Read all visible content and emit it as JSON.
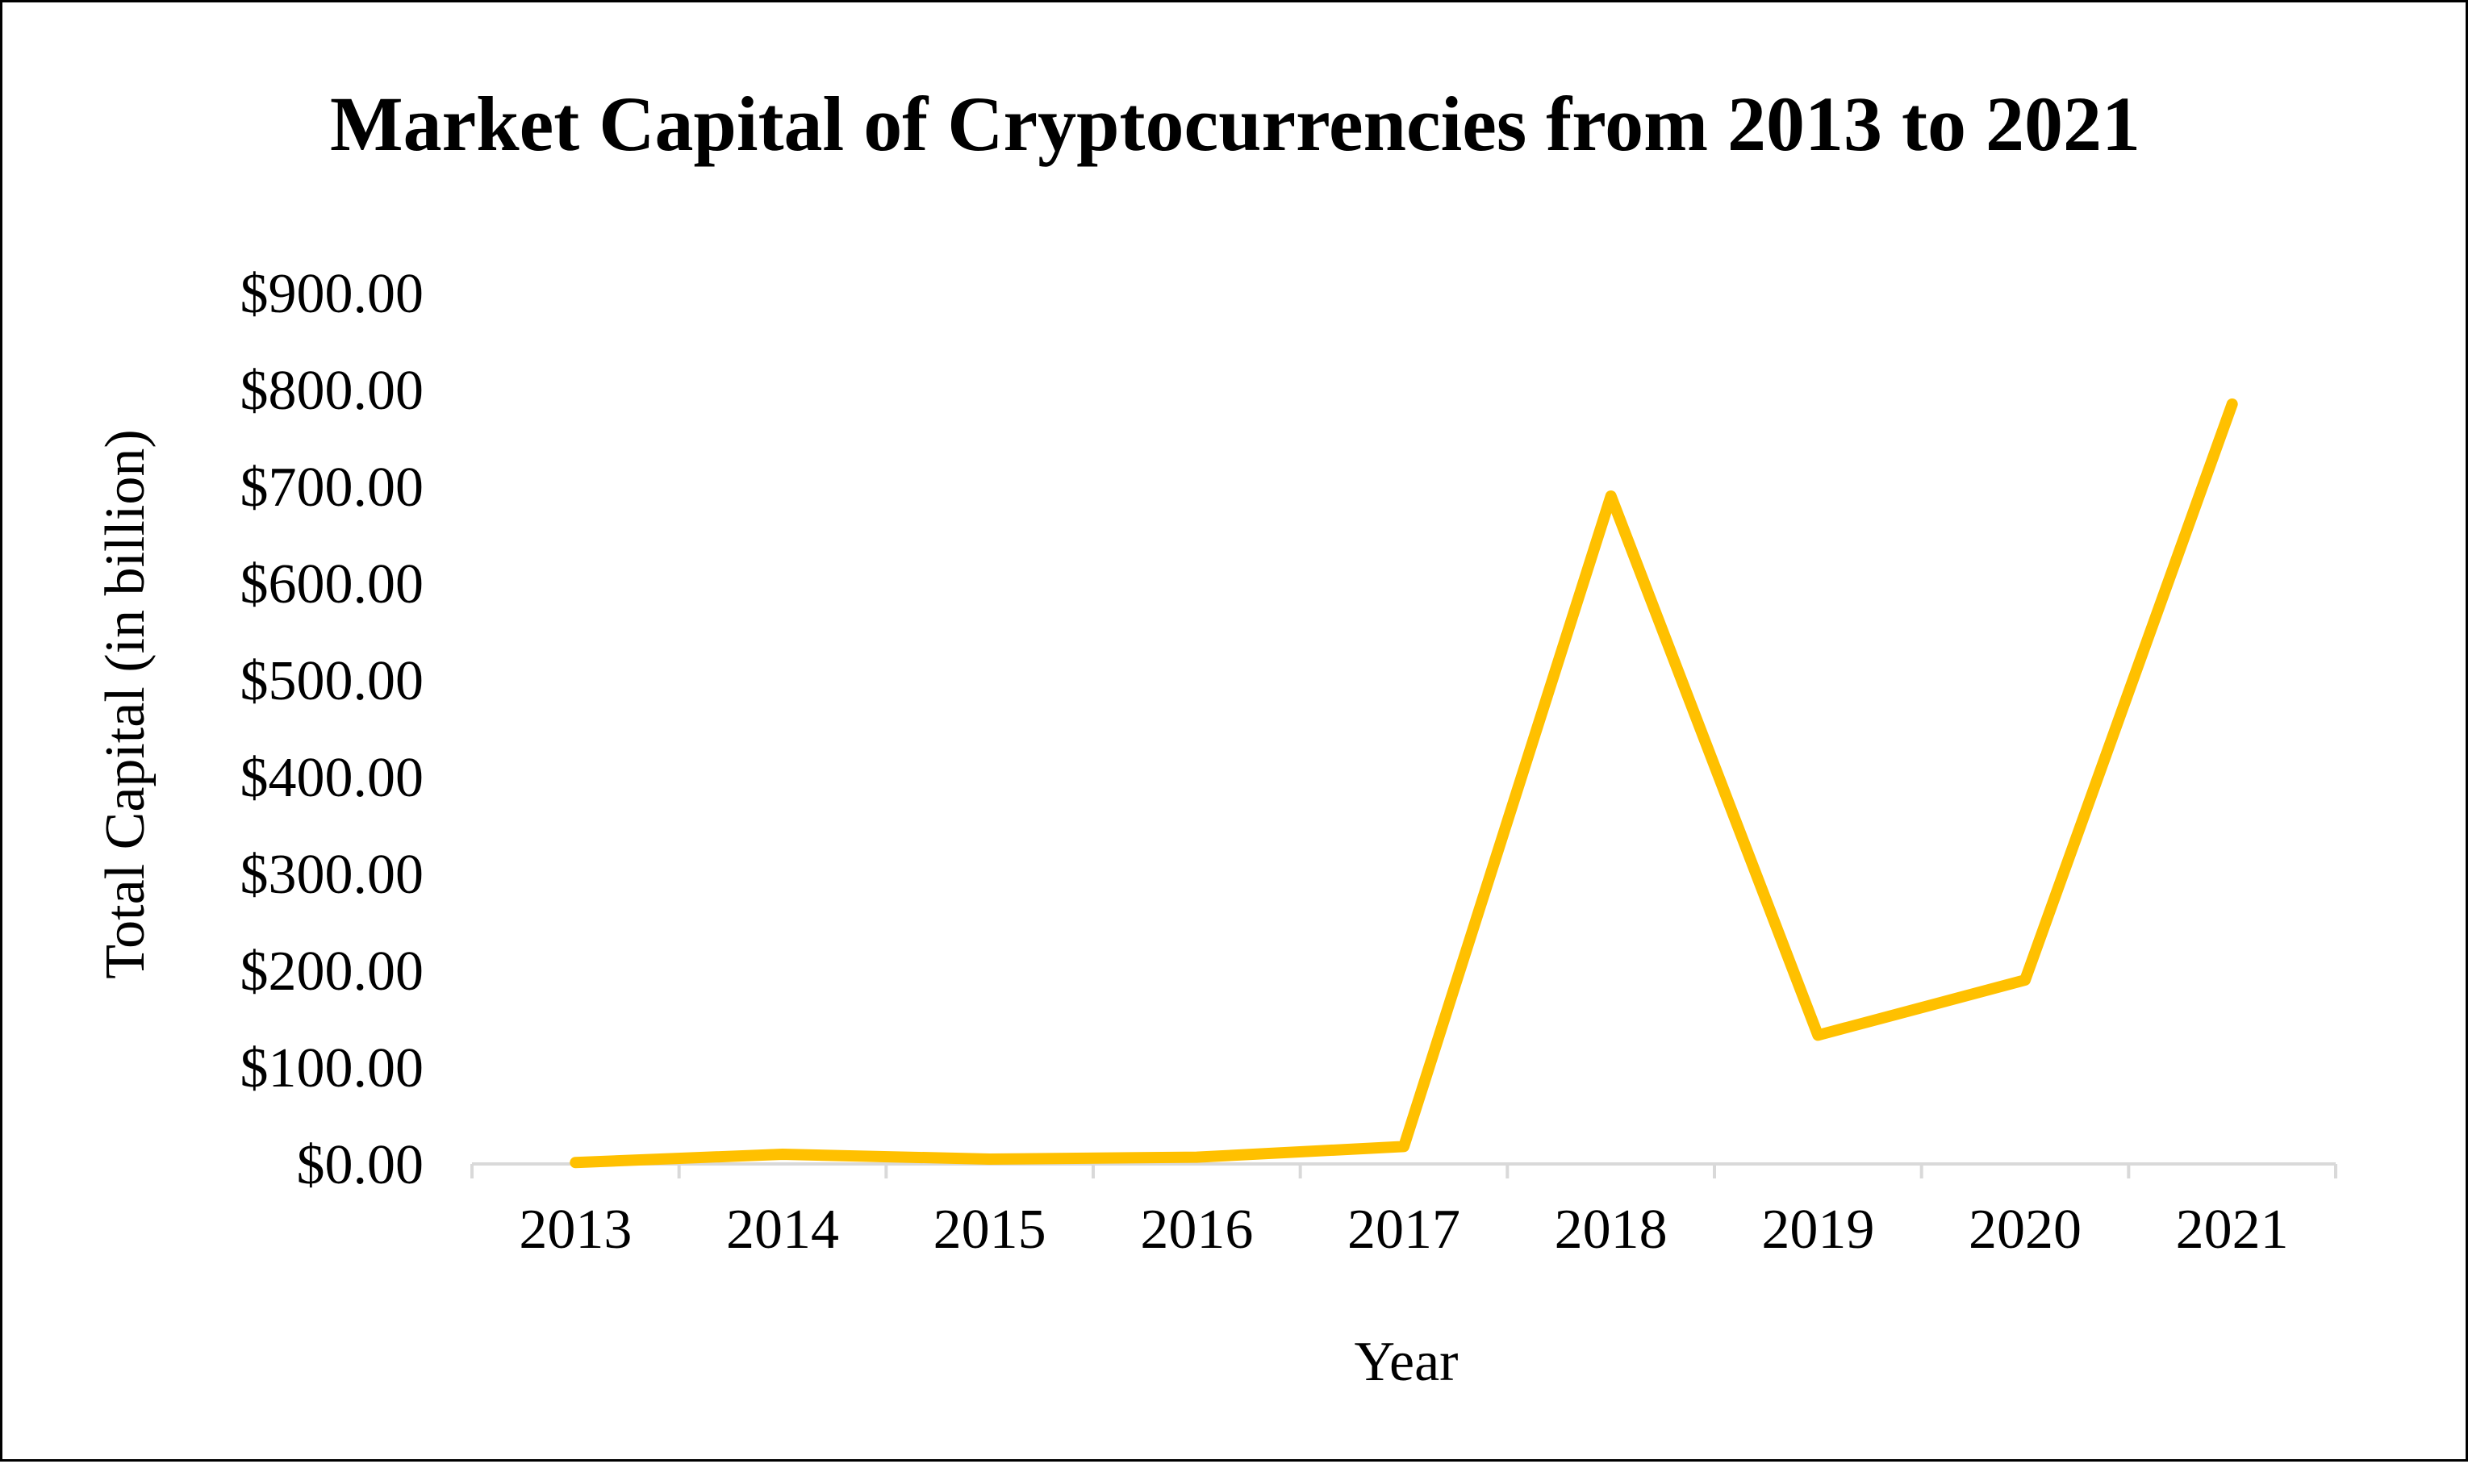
{
  "chart_data": {
    "type": "line",
    "title": "Market Capital of Cryptocurrencies from 2013 to 2021",
    "xlabel": "Year",
    "ylabel": "Total Capital (in billion)",
    "categories": [
      "2013",
      "2014",
      "2015",
      "2016",
      "2017",
      "2018",
      "2019",
      "2020",
      "2021"
    ],
    "series": [
      {
        "values": [
          1.5,
          10,
          5,
          7,
          18,
          690,
          133,
          190,
          785
        ]
      }
    ],
    "ylim": [
      0,
      900
    ],
    "yticks": [
      0,
      100,
      200,
      300,
      400,
      500,
      600,
      700,
      800,
      900
    ],
    "ytick_labels": [
      "$0.00",
      "$100.00",
      "$200.00",
      "$300.00",
      "$400.00",
      "$500.00",
      "$600.00",
      "$700.00",
      "$800.00",
      "$900.00"
    ],
    "grid": false,
    "legend": "none",
    "line_color": "#FFC000"
  }
}
